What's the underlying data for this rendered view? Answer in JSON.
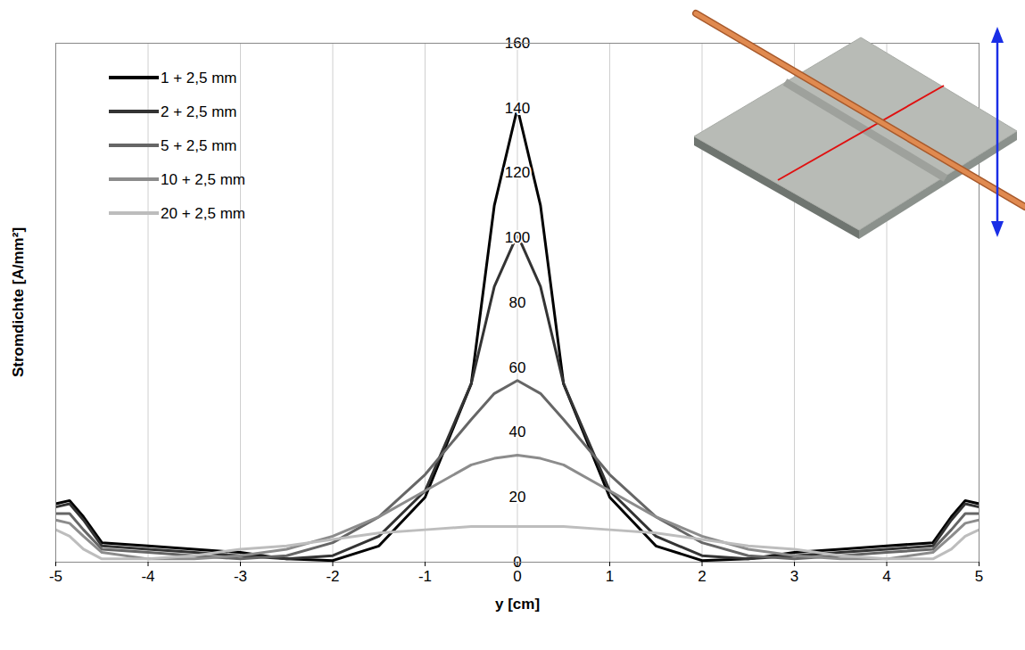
{
  "chart_data": {
    "type": "line",
    "x_label": "y [cm]",
    "y_label": "Stromdichte [A/mm²]",
    "x": [
      -5,
      -4.85,
      -4.7,
      -4.5,
      -4,
      -3.5,
      -3,
      -2.5,
      -2,
      -1.5,
      -1,
      -0.5,
      -0.25,
      0,
      0.25,
      0.5,
      1,
      1.5,
      2,
      2.5,
      3,
      3.5,
      4,
      4.5,
      4.7,
      4.85,
      5
    ],
    "series": [
      {
        "name": "1 + 2,5 mm",
        "color": "#000000",
        "values": [
          18,
          19,
          14,
          6,
          5,
          4,
          3,
          1,
          0.5,
          5,
          20,
          55,
          110,
          140,
          110,
          55,
          20,
          5,
          0.5,
          1,
          3,
          4,
          5,
          6,
          14,
          19,
          18
        ]
      },
      {
        "name": "2 + 2,5 mm",
        "color": "#333333",
        "values": [
          17,
          18,
          13,
          5,
          4,
          3,
          2,
          1,
          2,
          8,
          22,
          55,
          85,
          101,
          85,
          55,
          22,
          8,
          2,
          1,
          2,
          3,
          4,
          5,
          13,
          18,
          17
        ]
      },
      {
        "name": "5 + 2,5 mm",
        "color": "#666666",
        "values": [
          15,
          15,
          10,
          4,
          3,
          2,
          1,
          2,
          6,
          14,
          27,
          44,
          52,
          56,
          52,
          44,
          27,
          14,
          6,
          2,
          1,
          2,
          3,
          4,
          10,
          15,
          15
        ]
      },
      {
        "name": "10 + 2,5 mm",
        "color": "#8c8c8c",
        "values": [
          13,
          12,
          8,
          3,
          1,
          1,
          2,
          4,
          8,
          14,
          22,
          30,
          32,
          33,
          32,
          30,
          22,
          14,
          8,
          4,
          2,
          1,
          1,
          3,
          8,
          12,
          13
        ]
      },
      {
        "name": "20 + 2,5 mm",
        "color": "#bdbdbd",
        "values": [
          10,
          8,
          4,
          1,
          1,
          2,
          4,
          5,
          7,
          9,
          10,
          11,
          11,
          11,
          11,
          11,
          10,
          9,
          7,
          5,
          4,
          2,
          1,
          1,
          4,
          8,
          10
        ]
      }
    ],
    "xlim": [
      -5,
      5
    ],
    "xticks": [
      -5,
      -4,
      -3,
      -2,
      -1,
      0,
      1,
      2,
      3,
      4,
      5
    ],
    "ylim": [
      0,
      160
    ],
    "yticks": [
      0,
      20,
      40,
      60,
      80,
      100,
      120,
      140,
      160
    ],
    "grid": true,
    "legend": "top-left"
  }
}
